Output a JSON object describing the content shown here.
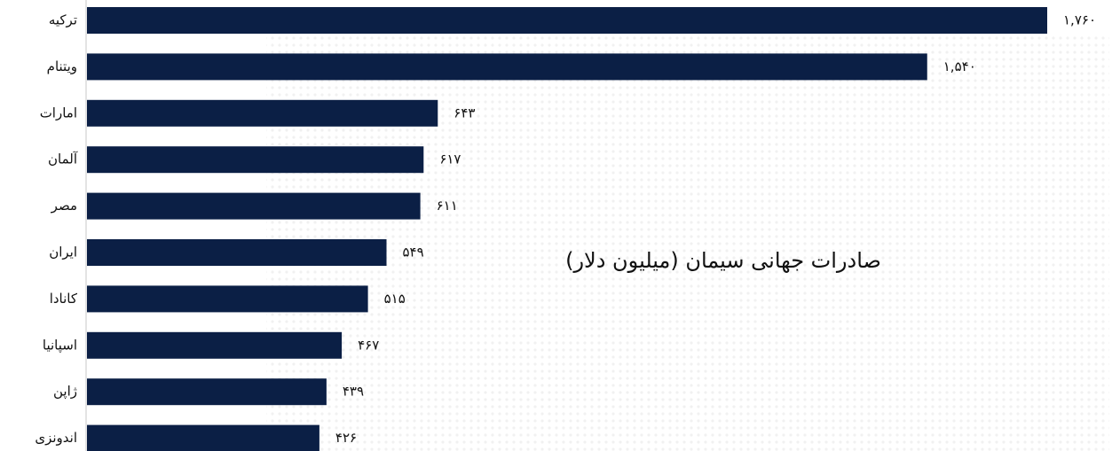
{
  "chart_data": {
    "type": "bar",
    "title": "صادرات جهانی سیمان (میلیون دلار)",
    "categories": [
      "ترکیه",
      "ویتنام",
      "امارات",
      "آلمان",
      "مصر",
      "ایران",
      "کانادا",
      "اسپانیا",
      "ژاپن",
      "اندونزی"
    ],
    "values": [
      1760,
      1540,
      643,
      617,
      611,
      549,
      515,
      467,
      439,
      426
    ],
    "value_labels": [
      "۱,۷۶۰",
      "۱,۵۴۰",
      "۶۴۳",
      "۶۱۷",
      "۶۱۱",
      "۵۴۹",
      "۵۱۵",
      "۴۶۷",
      "۴۳۹",
      "۴۲۶"
    ],
    "color": "#0b1f45",
    "xlim": [
      0,
      1760
    ]
  }
}
